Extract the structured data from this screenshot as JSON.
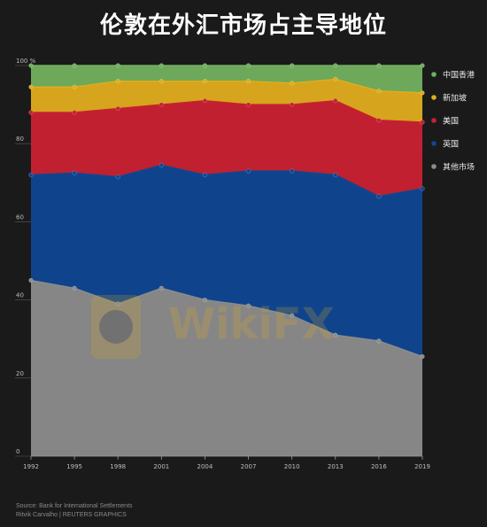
{
  "title": "伦敦在外汇市场占主导地位",
  "source": "Source: Bank for International Settlements",
  "credit": "Ritvik Carvalho    | REUTERS GRAPHICS",
  "watermark": "WikiFX",
  "chart_data": {
    "type": "area",
    "stacked": true,
    "x": [
      "1992",
      "1995",
      "1998",
      "2001",
      "2004",
      "2007",
      "2010",
      "2013",
      "2016",
      "2019"
    ],
    "yticks": [
      "100 %",
      "80",
      "60",
      "40",
      "20",
      "0"
    ],
    "ylim": [
      0,
      100
    ],
    "grid": true,
    "legend_position": "right",
    "series": [
      {
        "name": "其他市场",
        "color": "#8c8c8c",
        "values": [
          45,
          43,
          39,
          43,
          40,
          38.5,
          36,
          31,
          29.5,
          25.5
        ]
      },
      {
        "name": "英国",
        "color": "#0f4792",
        "values": [
          27,
          29.5,
          32.5,
          31.5,
          32,
          34.5,
          37,
          41,
          37,
          43
        ]
      },
      {
        "name": "美国",
        "color": "#c92130",
        "values": [
          16,
          15.5,
          17.5,
          15.5,
          19,
          17,
          17,
          19,
          19.5,
          17
        ]
      },
      {
        "name": "新加坡",
        "color": "#e0ad1d",
        "values": [
          6.5,
          6.5,
          7,
          6,
          5,
          6,
          5.5,
          5.5,
          7.5,
          7.5
        ]
      },
      {
        "name": "中国香港",
        "color": "#72b05f",
        "values": [
          5.5,
          5.5,
          4,
          4,
          4,
          4,
          4.5,
          3.5,
          6.5,
          7
        ]
      }
    ],
    "legend_order": [
      "中国香港",
      "新加坡",
      "美国",
      "英国",
      "其他市场"
    ]
  }
}
